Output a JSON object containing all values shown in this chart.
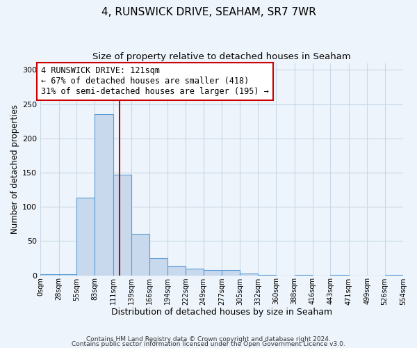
{
  "title": "4, RUNSWICK DRIVE, SEAHAM, SR7 7WR",
  "subtitle": "Size of property relative to detached houses in Seaham",
  "xlabel": "Distribution of detached houses by size in Seaham",
  "ylabel": "Number of detached properties",
  "bin_edges": [
    0,
    28,
    55,
    83,
    111,
    139,
    166,
    194,
    222,
    249,
    277,
    305,
    332,
    360,
    388,
    416,
    443,
    471,
    499,
    526,
    554
  ],
  "bin_counts": [
    2,
    2,
    113,
    235,
    147,
    61,
    25,
    14,
    10,
    8,
    8,
    3,
    1,
    0,
    1,
    0,
    1,
    0,
    0,
    1
  ],
  "bar_color": "#c8d9ee",
  "bar_edge_color": "#5b9bd5",
  "vline_x": 121,
  "vline_color": "#cc0000",
  "annotation_text": "4 RUNSWICK DRIVE: 121sqm\n← 67% of detached houses are smaller (418)\n31% of semi-detached houses are larger (195) →",
  "annotation_box_color": "#ffffff",
  "annotation_box_edge_color": "#cc0000",
  "ylim": [
    0,
    310
  ],
  "yticks": [
    0,
    50,
    100,
    150,
    200,
    250,
    300
  ],
  "xtick_labels": [
    "0sqm",
    "28sqm",
    "55sqm",
    "83sqm",
    "111sqm",
    "139sqm",
    "166sqm",
    "194sqm",
    "222sqm",
    "249sqm",
    "277sqm",
    "305sqm",
    "332sqm",
    "360sqm",
    "388sqm",
    "416sqm",
    "443sqm",
    "471sqm",
    "499sqm",
    "526sqm",
    "554sqm"
  ],
  "grid_color": "#c8d8e8",
  "background_color": "#eef4fb",
  "footer_line1": "Contains HM Land Registry data © Crown copyright and database right 2024.",
  "footer_line2": "Contains public sector information licensed under the Open Government Licence v3.0.",
  "title_fontsize": 11,
  "subtitle_fontsize": 9.5,
  "xlabel_fontsize": 9,
  "ylabel_fontsize": 8.5,
  "annotation_fontsize": 8.5,
  "tick_fontsize": 7,
  "ytick_fontsize": 8
}
